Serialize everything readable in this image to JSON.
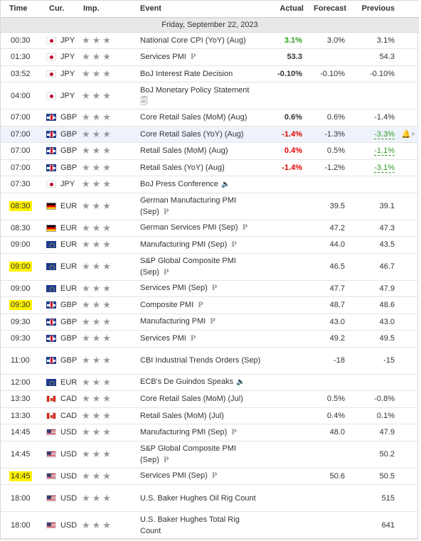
{
  "header": {
    "time": "Time",
    "currency": "Cur.",
    "importance": "Imp.",
    "event": "Event",
    "actual": "Actual",
    "forecast": "Forecast",
    "previous": "Previous"
  },
  "date_label": "Friday, September 22, 2023",
  "icons": {
    "star": "★★★",
    "preliminary": "P",
    "speaker": "🔈",
    "doc": "🗐",
    "alert": "🔔+"
  },
  "colors": {
    "positive": "#2e9c1e",
    "negative": "#e00000",
    "highlight_time": "#fff200",
    "hover_row": "#eef3fb"
  },
  "events": [
    {
      "time": "00:30",
      "currency": "JPY",
      "event": "National Core CPI (YoY) (Aug)",
      "actual": "3.1%",
      "forecast": "3.0%",
      "previous": "3.1%"
    },
    {
      "time": "01:30",
      "currency": "JPY",
      "event": "Services PMI",
      "actual": "53.3",
      "forecast": "",
      "previous": "54.3"
    },
    {
      "time": "03:52",
      "currency": "JPY",
      "event": "BoJ Interest Rate Decision",
      "actual": "-0.10%",
      "forecast": "-0.10%",
      "previous": "-0.10%"
    },
    {
      "time": "04:00",
      "currency": "JPY",
      "event": "BoJ Monetary Policy Statement",
      "actual": "",
      "forecast": "",
      "previous": ""
    },
    {
      "time": "07:00",
      "currency": "GBP",
      "event": "Core Retail Sales (MoM) (Aug)",
      "actual": "0.6%",
      "forecast": "0.6%",
      "previous": "-1.4%"
    },
    {
      "time": "07:00",
      "currency": "GBP",
      "event": "Core Retail Sales (YoY) (Aug)",
      "actual": "-1.4%",
      "forecast": "-1.3%",
      "previous": "-3.3%"
    },
    {
      "time": "07:00",
      "currency": "GBP",
      "event": "Retail Sales (MoM) (Aug)",
      "actual": "0.4%",
      "forecast": "0.5%",
      "previous": "-1.1%"
    },
    {
      "time": "07:00",
      "currency": "GBP",
      "event": "Retail Sales (YoY) (Aug)",
      "actual": "-1.4%",
      "forecast": "-1.2%",
      "previous": "-3.1%"
    },
    {
      "time": "07:30",
      "currency": "JPY",
      "event": "BoJ Press Conference",
      "actual": "",
      "forecast": "",
      "previous": ""
    },
    {
      "time": "08:30",
      "currency": "EUR",
      "event": "German Manufacturing PMI (Sep)",
      "actual": "",
      "forecast": "39.5",
      "previous": "39.1"
    },
    {
      "time": "08:30",
      "currency": "EUR",
      "event": "German Services PMI (Sep)",
      "actual": "",
      "forecast": "47.2",
      "previous": "47.3"
    },
    {
      "time": "09:00",
      "currency": "EUR",
      "event": "Manufacturing PMI (Sep)",
      "actual": "",
      "forecast": "44.0",
      "previous": "43.5"
    },
    {
      "time": "09:00",
      "currency": "EUR",
      "event": "S&P Global Composite PMI (Sep)",
      "actual": "",
      "forecast": "46.5",
      "previous": "46.7"
    },
    {
      "time": "09:00",
      "currency": "EUR",
      "event": "Services PMI (Sep)",
      "actual": "",
      "forecast": "47.7",
      "previous": "47.9"
    },
    {
      "time": "09:30",
      "currency": "GBP",
      "event": "Composite PMI",
      "actual": "",
      "forecast": "48.7",
      "previous": "48.6"
    },
    {
      "time": "09:30",
      "currency": "GBP",
      "event": "Manufacturing PMI",
      "actual": "",
      "forecast": "43.0",
      "previous": "43.0"
    },
    {
      "time": "09:30",
      "currency": "GBP",
      "event": "Services PMI",
      "actual": "",
      "forecast": "49.2",
      "previous": "49.5"
    },
    {
      "time": "11:00",
      "currency": "GBP",
      "event": "CBI Industrial Trends Orders (Sep)",
      "actual": "",
      "forecast": "-18",
      "previous": "-15"
    },
    {
      "time": "12:00",
      "currency": "EUR",
      "event": "ECB's De Guindos Speaks",
      "actual": "",
      "forecast": "",
      "previous": ""
    },
    {
      "time": "13:30",
      "currency": "CAD",
      "event": "Core Retail Sales (MoM) (Jul)",
      "actual": "",
      "forecast": "0.5%",
      "previous": "-0.8%"
    },
    {
      "time": "13:30",
      "currency": "CAD",
      "event": "Retail Sales (MoM) (Jul)",
      "actual": "",
      "forecast": "0.4%",
      "previous": "0.1%"
    },
    {
      "time": "14:45",
      "currency": "USD",
      "event": "Manufacturing PMI (Sep)",
      "actual": "",
      "forecast": "48.0",
      "previous": "47.9"
    },
    {
      "time": "14:45",
      "currency": "USD",
      "event": "S&P Global Composite PMI (Sep)",
      "actual": "",
      "forecast": "",
      "previous": "50.2"
    },
    {
      "time": "14:45",
      "currency": "USD",
      "event": "Services PMI (Sep)",
      "actual": "",
      "forecast": "50.6",
      "previous": "50.5"
    },
    {
      "time": "18:00",
      "currency": "USD",
      "event": "U.S. Baker Hughes Oil Rig Count",
      "actual": "",
      "forecast": "",
      "previous": "515"
    },
    {
      "time": "18:00",
      "currency": "USD",
      "event": "U.S. Baker Hughes Total Rig Count",
      "actual": "",
      "forecast": "",
      "previous": "641"
    }
  ]
}
